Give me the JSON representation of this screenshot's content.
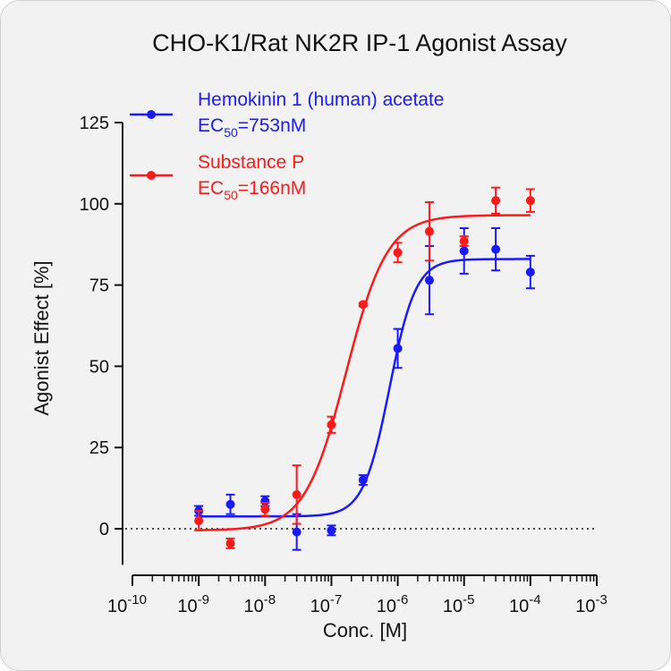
{
  "chart_data": {
    "type": "scatter",
    "title": "CHO-K1/Rat NK2R IP-1 Agonist Assay",
    "xlabel": "Conc. [M]",
    "ylabel": "Agonist Effect [%]",
    "x_scale": "log",
    "xlim": [
      1e-10,
      0.001
    ],
    "ylim": [
      -10,
      125
    ],
    "x_tick_labels": [
      {
        "base": "10",
        "exp": "-10"
      },
      {
        "base": "10",
        "exp": "-9"
      },
      {
        "base": "10",
        "exp": "-8"
      },
      {
        "base": "10",
        "exp": "-7"
      },
      {
        "base": "10",
        "exp": "-6"
      },
      {
        "base": "10",
        "exp": "-5"
      },
      {
        "base": "10",
        "exp": "-4"
      },
      {
        "base": "10",
        "exp": "-3"
      }
    ],
    "y_ticks": [
      "0",
      "25",
      "50",
      "75",
      "100",
      "125"
    ],
    "reference_line_y": 0,
    "grid": false,
    "legend_position": "top-left",
    "series": [
      {
        "name": "Hemokinin 1 (human) acetate",
        "ec50_label": "EC",
        "ec50_sub": "50",
        "ec50_value": "=753nM",
        "color": "#1a1aff",
        "x": [
          1e-09,
          3e-09,
          1e-08,
          3e-08,
          1e-07,
          3e-07,
          1e-06,
          3e-06,
          1e-05,
          3e-05,
          0.0001
        ],
        "y": [
          5.5,
          7.5,
          8.5,
          -1.0,
          -0.5,
          15.0,
          55.5,
          76.5,
          85.5,
          86.0,
          79.0
        ],
        "error": [
          1.5,
          3.0,
          1.5,
          5.5,
          1.5,
          1.5,
          6.0,
          10.5,
          7.0,
          6.5,
          5.0
        ],
        "fit": {
          "bottom": 3.8,
          "top": 83.0,
          "ec50": 7.53e-07,
          "hill": 2.2
        }
      },
      {
        "name": "Substance P",
        "ec50_label": "EC",
        "ec50_sub": "50",
        "ec50_value": "=166nM",
        "color": "#ff1a1a",
        "x": [
          1e-09,
          3e-09,
          1e-08,
          3e-08,
          1e-07,
          3e-07,
          1e-06,
          3e-06,
          1e-05,
          3e-05,
          0.0001
        ],
        "y": [
          2.5,
          -4.5,
          6.0,
          10.5,
          32.0,
          69.0,
          85.0,
          91.5,
          88.5,
          101.0,
          101.0
        ],
        "error": [
          3.0,
          1.5,
          2.0,
          9.0,
          2.5,
          0.5,
          3.0,
          9.0,
          1.5,
          4.0,
          3.5
        ],
        "fit": {
          "bottom": -0.5,
          "top": 96.5,
          "ec50": 1.66e-07,
          "hill": 1.4
        }
      }
    ]
  }
}
